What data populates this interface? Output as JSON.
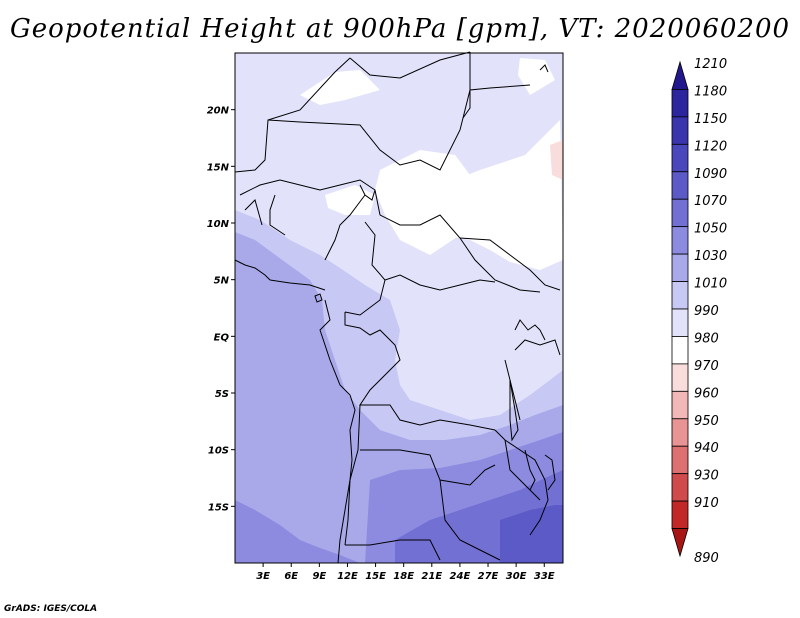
{
  "title": "Geopotential Height at 900hPa [gpm], VT: 2020060200",
  "credit": "GrADS: IGES/COLA",
  "map": {
    "lon_range": [
      0,
      35
    ],
    "lat_range": [
      -20,
      25
    ],
    "x_ticks": [
      "3E",
      "6E",
      "9E",
      "12E",
      "15E",
      "18E",
      "21E",
      "24E",
      "27E",
      "30E",
      "33E"
    ],
    "y_ticks": [
      "20N",
      "15N",
      "10N",
      "5N",
      "EQ",
      "5S",
      "10S",
      "15S"
    ]
  },
  "colorbar": {
    "levels": [
      "1210",
      "1180",
      "1150",
      "1120",
      "1090",
      "1070",
      "1050",
      "1030",
      "1010",
      "990",
      "980",
      "970",
      "960",
      "950",
      "940",
      "930",
      "910",
      "890"
    ],
    "colors": [
      "#22178c",
      "#2c259e",
      "#3a35ad",
      "#4a46bb",
      "#5c5ac6",
      "#7270d2",
      "#8c8be0",
      "#a9a9ea",
      "#c7c8f4",
      "#e2e3fa",
      "#ffffff",
      "#f9dcdc",
      "#f2b8b8",
      "#e89494",
      "#dd7070",
      "#d04b4b",
      "#c22828",
      "#a81515"
    ]
  }
}
